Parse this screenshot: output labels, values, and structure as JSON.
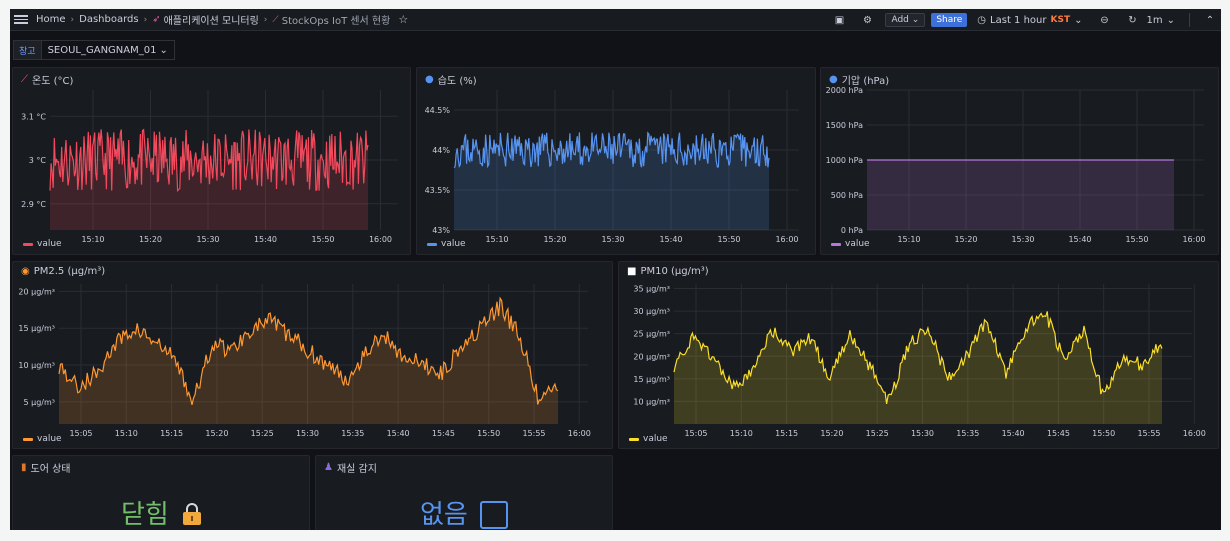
{
  "topbar": {
    "breadcrumbs": [
      "Home",
      "Dashboards",
      "애플리케이션 모니터링",
      "StockOps IoT 센서 현황"
    ],
    "add_label": "Add",
    "share_label": "Share",
    "time_range": "Last 1 hour",
    "timezone": "KST",
    "refresh_interval": "1m"
  },
  "variables": {
    "label": "창고",
    "value": "SEOUL_GANGNAM_01"
  },
  "panels": {
    "temperature": {
      "title": "온도 (°C)",
      "legend": "value",
      "color": "#f2495c"
    },
    "humidity": {
      "title": "습도 (%)",
      "legend": "value",
      "color": "#5794f2"
    },
    "pressure": {
      "title": "기압 (hPa)",
      "legend": "value",
      "color": "#b877d9"
    },
    "pm25": {
      "title": "PM2.5 (μg/m³)",
      "legend": "value",
      "color": "#ff9830"
    },
    "pm10": {
      "title": "PM10 (μg/m³)",
      "legend": "value",
      "color": "#fade2a"
    },
    "door": {
      "title": "도어 상태",
      "value": "닫힘",
      "color": "#73bf69"
    },
    "occupancy": {
      "title": "재실 감지",
      "value": "없음",
      "color": "#5794f2"
    }
  },
  "chart_data": [
    {
      "id": "temperature",
      "type": "line",
      "y_ticks": [
        "3.1 °C",
        "3 °C",
        "2.9 °C"
      ],
      "y_tick_values": [
        3.1,
        3.0,
        2.9
      ],
      "ylim": [
        2.84,
        3.16
      ],
      "x_ticks": [
        "15:10",
        "15:20",
        "15:30",
        "15:40",
        "15:50",
        "16:00"
      ],
      "series": [
        {
          "name": "value",
          "baseline": 3.0,
          "noise": 0.07,
          "points": 300
        }
      ]
    },
    {
      "id": "humidity",
      "type": "line",
      "y_ticks": [
        "44.5%",
        "44%",
        "43.5%",
        "43%"
      ],
      "y_tick_values": [
        44.5,
        44.0,
        43.5,
        43.0
      ],
      "ylim": [
        43.0,
        44.75
      ],
      "x_ticks": [
        "15:10",
        "15:20",
        "15:30",
        "15:40",
        "15:50",
        "16:00"
      ],
      "series": [
        {
          "name": "value",
          "baseline": 44.0,
          "noise": 0.22,
          "points": 300
        }
      ]
    },
    {
      "id": "pressure",
      "type": "line",
      "y_ticks": [
        "2000 hPa",
        "1500 hPa",
        "1000 hPa",
        "500 hPa",
        "0 hPa"
      ],
      "y_tick_values": [
        2000,
        1500,
        1000,
        500,
        0
      ],
      "ylim": [
        0,
        2000
      ],
      "x_ticks": [
        "15:10",
        "15:20",
        "15:30",
        "15:40",
        "15:50",
        "16:00"
      ],
      "series": [
        {
          "name": "value",
          "constant": 1000
        }
      ]
    },
    {
      "id": "pm25",
      "type": "line",
      "y_ticks": [
        "20 μg/m³",
        "15 μg/m³",
        "10 μg/m³",
        "5 μg/m³"
      ],
      "y_tick_values": [
        20,
        15,
        10,
        5
      ],
      "ylim": [
        2,
        21
      ],
      "x_ticks": [
        "15:05",
        "15:10",
        "15:15",
        "15:20",
        "15:25",
        "15:30",
        "15:35",
        "15:40",
        "15:45",
        "15:50",
        "15:55",
        "16:00"
      ],
      "series": [
        {
          "name": "value",
          "trend": [
            10,
            7,
            9,
            13,
            15,
            13,
            11,
            5,
            13,
            12,
            15,
            16,
            14,
            12,
            10,
            8,
            12,
            14,
            11,
            10,
            9,
            13,
            15,
            18,
            14,
            5,
            7
          ],
          "noise": 1.2,
          "points": 320
        }
      ]
    },
    {
      "id": "pm10",
      "type": "line",
      "y_ticks": [
        "35 μg/m³",
        "30 μg/m³",
        "25 μg/m³",
        "20 μg/m³",
        "15 μg/m³",
        "10 μg/m³"
      ],
      "y_tick_values": [
        35,
        30,
        25,
        20,
        15,
        10
      ],
      "ylim": [
        5,
        36
      ],
      "x_ticks": [
        "15:05",
        "15:10",
        "15:15",
        "15:20",
        "15:25",
        "15:30",
        "15:35",
        "15:40",
        "15:45",
        "15:50",
        "15:55",
        "16:00"
      ],
      "series": [
        {
          "name": "value",
          "trend": [
            18,
            24,
            20,
            13,
            16,
            26,
            21,
            24,
            15,
            25,
            18,
            10,
            22,
            27,
            15,
            20,
            28,
            16,
            26,
            30,
            19,
            26,
            11,
            20,
            18,
            23
          ],
          "noise": 1.5,
          "points": 320
        }
      ]
    }
  ]
}
